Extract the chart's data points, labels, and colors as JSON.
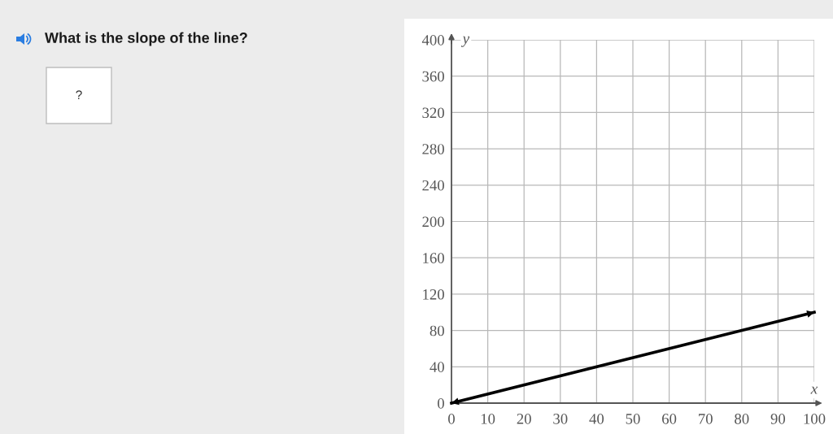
{
  "chart_data": {
    "type": "line",
    "title": "What is the slope of the line?",
    "xlabel": "x",
    "ylabel": "y",
    "x": [
      0,
      100
    ],
    "series": [
      {
        "color": "#000000",
        "values": [
          0,
          100
        ]
      }
    ],
    "xlim": [
      0,
      100
    ],
    "ylim": [
      0,
      400
    ],
    "xticks": [
      0,
      10,
      20,
      30,
      40,
      50,
      60,
      70,
      80,
      90,
      100
    ],
    "yticks": [
      0,
      40,
      80,
      120,
      160,
      200,
      240,
      280,
      320,
      360,
      400
    ],
    "grid": true,
    "line_style": "solid",
    "annotations": [
      "?"
    ]
  }
}
